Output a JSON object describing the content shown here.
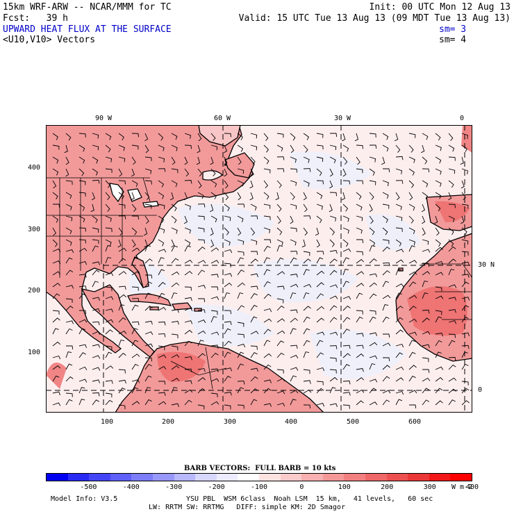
{
  "header": {
    "model_line": "15km WRF-ARW -- NCAR/MMM for TC",
    "init_line": "Init: 00 UTC Mon 12 Aug 13",
    "fcst_line": "Fcst:   39 h",
    "valid_line": "Valid: 15 UTC Tue 13 Aug 13 (09 MDT Tue 13 Aug 13)",
    "field_title": "UPWARD HEAT FLUX AT THE SURFACE",
    "field_sm": "sm= 3",
    "vector_title": "<U10,V10> Vectors",
    "vector_sm": "sm= 4"
  },
  "map": {
    "lon_labels": [
      "90 W",
      "60 W",
      "30 W",
      "0"
    ],
    "lat_labels": [
      "30 N",
      "0"
    ],
    "y_ticks": [
      "400",
      "300",
      "200",
      "100"
    ],
    "x_ticks": [
      "100",
      "200",
      "300",
      "400",
      "500",
      "600"
    ],
    "ocean_color": "#fdeeee",
    "land_color": "#f29a9a",
    "high_color": "#ee6a6a"
  },
  "legend": {
    "barb_caption": "BARB VECTORS:  FULL BARB = 10 kts",
    "labels": [
      "-500",
      "-400",
      "-300",
      "-200",
      "-100",
      "0",
      "100",
      "200",
      "300",
      "400"
    ],
    "unit": "W m-2",
    "colors": [
      "#0000f0",
      "#2a2af5",
      "#4545f8",
      "#6060fa",
      "#7d7dfb",
      "#9898fc",
      "#b8b8fd",
      "#d8d8fe",
      "#ececfe",
      "#ffffff",
      "#fde2e2",
      "#fbcaca",
      "#f8b0b0",
      "#f59898",
      "#f28080",
      "#ef6868",
      "#ec5050",
      "#ea3838",
      "#f01818",
      "#ff0000"
    ]
  },
  "footer": {
    "model_info": "Model Info: V3.5",
    "physics_1": "YSU PBL  WSM 6class  Noah LSM  15 km,   41 levels,   60 sec",
    "physics_2": "LW: RRTM SW: RRTMG   DIFF: simple KM: 2D Smagor"
  }
}
